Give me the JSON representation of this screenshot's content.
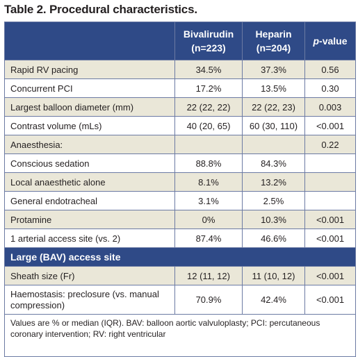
{
  "title": "Table 2. Procedural characteristics.",
  "header": {
    "col1": "",
    "col2_line1": "Bivalirudin",
    "col2_line2": "(n=223)",
    "col3_line1": "Heparin",
    "col3_line2": "(n=204)",
    "col4_italic": "p",
    "col4_rest": "-value"
  },
  "rows": [
    {
      "label": "Rapid RV pacing",
      "biv": "34.5%",
      "hep": "37.3%",
      "p": "0.56"
    },
    {
      "label": "Concurrent PCI",
      "biv": "17.2%",
      "hep": "13.5%",
      "p": "0.30"
    },
    {
      "label": "Largest balloon diameter (mm)",
      "biv": "22 (22, 22)",
      "hep": "22 (22, 23)",
      "p": "0.003"
    },
    {
      "label": "Contrast volume (mLs)",
      "biv": "40 (20, 65)",
      "hep": "60 (30, 110)",
      "p": "<0.001"
    },
    {
      "label": "Anaesthesia:",
      "biv": "",
      "hep": "",
      "p": "0.22"
    },
    {
      "label": "Conscious sedation",
      "biv": "88.8%",
      "hep": "84.3%",
      "p": ""
    },
    {
      "label": "Local anaesthetic alone",
      "biv": "8.1%",
      "hep": "13.2%",
      "p": ""
    },
    {
      "label": "General endotracheal",
      "biv": "3.1%",
      "hep": "2.5%",
      "p": ""
    },
    {
      "label": "Protamine",
      "biv": "0%",
      "hep": "10.3%",
      "p": "<0.001"
    },
    {
      "label": "1 arterial access site (vs. 2)",
      "biv": "87.4%",
      "hep": "46.6%",
      "p": "<0.001"
    }
  ],
  "section": "Large (BAV) access site",
  "rows2": [
    {
      "label": "Sheath size (Fr)",
      "biv": "12 (11, 12)",
      "hep": "11 (10, 12)",
      "p": "<0.001"
    },
    {
      "label": "Haemostasis: preclosure (vs. manual compression)",
      "biv": "70.9%",
      "hep": "42.4%",
      "p": "<0.001"
    }
  ],
  "footnote": "Values are % or median (IQR). BAV: balloon aortic valvuloplasty; PCI: percutaneous coronary intervention; RV: right ventricular",
  "colors": {
    "header_bg": "#2f4a87",
    "shade_bg": "#eae7d8",
    "border": "#6b7aa3"
  }
}
